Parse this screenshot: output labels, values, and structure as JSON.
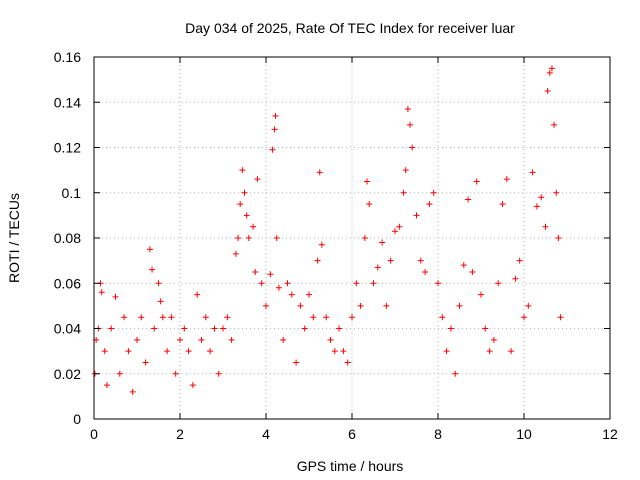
{
  "chart_data": {
    "type": "scatter",
    "title": "Day 034 of 2025, Rate Of TEC Index for receiver luar",
    "xlabel": "GPS time / hours",
    "ylabel": "ROTI / TECUs",
    "xlim": [
      0,
      12
    ],
    "ylim": [
      0,
      0.16
    ],
    "x_ticks": [
      0,
      2,
      4,
      6,
      8,
      10,
      12
    ],
    "y_ticks": [
      0,
      0.02,
      0.04,
      0.06,
      0.08,
      0.1,
      0.12,
      0.14,
      0.16
    ],
    "x_tick_labels": [
      "0",
      "2",
      "4",
      "6",
      "8",
      "10",
      "12"
    ],
    "y_tick_labels": [
      "0",
      "0.02",
      "0.04",
      "0.06",
      "0.08",
      "0.1",
      "0.12",
      "0.14",
      "0.16"
    ],
    "grid": true,
    "marker": "+",
    "color": "#ff0000",
    "series": [
      {
        "x": [
          0.02,
          0.05,
          0.1,
          0.15,
          0.18,
          0.25,
          0.3,
          0.4,
          0.5,
          0.6,
          0.7,
          0.8,
          0.9,
          1.0,
          1.1,
          1.2,
          1.3,
          1.35,
          1.4,
          1.5,
          1.55,
          1.6,
          1.7,
          1.8,
          1.9,
          2.0,
          2.1,
          2.2,
          2.3,
          2.4,
          2.5,
          2.6,
          2.7,
          2.8,
          2.9,
          3.0,
          3.1,
          3.2,
          3.3,
          3.35,
          3.4,
          3.45,
          3.5,
          3.55,
          3.6,
          3.7,
          3.75,
          3.8,
          3.9,
          4.0,
          4.1,
          4.15,
          4.2,
          4.22,
          4.25,
          4.3,
          4.4,
          4.5,
          4.6,
          4.7,
          4.8,
          4.9,
          5.0,
          5.1,
          5.2,
          5.25,
          5.3,
          5.4,
          5.5,
          5.6,
          5.7,
          5.8,
          5.9,
          6.0,
          6.1,
          6.2,
          6.3,
          6.35,
          6.4,
          6.5,
          6.6,
          6.7,
          6.8,
          6.9,
          7.0,
          7.1,
          7.2,
          7.25,
          7.3,
          7.35,
          7.4,
          7.5,
          7.6,
          7.7,
          7.8,
          7.9,
          8.0,
          8.1,
          8.2,
          8.3,
          8.4,
          8.5,
          8.6,
          8.7,
          8.8,
          8.9,
          9.0,
          9.1,
          9.2,
          9.3,
          9.4,
          9.5,
          9.6,
          9.7,
          9.8,
          9.9,
          10.0,
          10.1,
          10.2,
          10.3,
          10.4,
          10.5,
          10.55,
          10.6,
          10.65,
          10.7,
          10.75,
          10.8,
          10.85
        ],
        "y": [
          0.02,
          0.035,
          0.04,
          0.06,
          0.056,
          0.03,
          0.015,
          0.04,
          0.054,
          0.02,
          0.045,
          0.03,
          0.012,
          0.035,
          0.045,
          0.025,
          0.075,
          0.066,
          0.04,
          0.06,
          0.052,
          0.045,
          0.03,
          0.045,
          0.02,
          0.035,
          0.04,
          0.03,
          0.015,
          0.055,
          0.035,
          0.045,
          0.03,
          0.04,
          0.02,
          0.04,
          0.045,
          0.035,
          0.073,
          0.08,
          0.095,
          0.11,
          0.1,
          0.09,
          0.08,
          0.085,
          0.065,
          0.106,
          0.06,
          0.05,
          0.064,
          0.119,
          0.128,
          0.134,
          0.08,
          0.058,
          0.035,
          0.06,
          0.055,
          0.025,
          0.05,
          0.04,
          0.055,
          0.045,
          0.07,
          0.109,
          0.077,
          0.045,
          0.035,
          0.03,
          0.04,
          0.03,
          0.025,
          0.045,
          0.06,
          0.05,
          0.08,
          0.105,
          0.095,
          0.06,
          0.067,
          0.078,
          0.05,
          0.07,
          0.083,
          0.085,
          0.1,
          0.11,
          0.137,
          0.13,
          0.12,
          0.09,
          0.07,
          0.065,
          0.095,
          0.1,
          0.06,
          0.045,
          0.03,
          0.04,
          0.02,
          0.05,
          0.068,
          0.097,
          0.065,
          0.105,
          0.055,
          0.04,
          0.03,
          0.035,
          0.06,
          0.095,
          0.106,
          0.03,
          0.062,
          0.07,
          0.045,
          0.05,
          0.109,
          0.094,
          0.098,
          0.085,
          0.145,
          0.153,
          0.155,
          0.13,
          0.1,
          0.08,
          0.045
        ]
      }
    ]
  }
}
